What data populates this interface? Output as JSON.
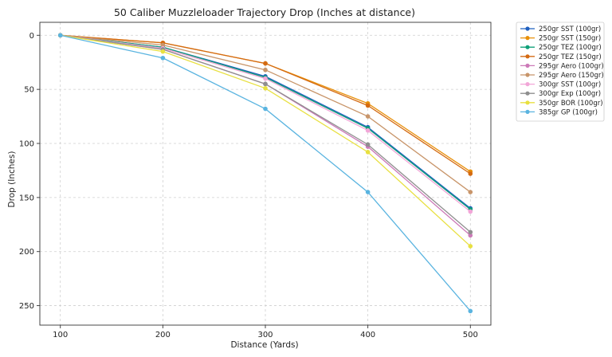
{
  "chart_data": {
    "type": "line",
    "title": "50 Caliber Muzzleloader Trajectory Drop (Inches at distance)",
    "xlabel": "Distance (Yards)",
    "ylabel": "Drop (Inches)",
    "x": [
      100,
      200,
      300,
      400,
      500
    ],
    "xlim": [
      80,
      520
    ],
    "ylim": [
      268,
      -12
    ],
    "y_inverted": true,
    "x_ticks": [
      100,
      200,
      300,
      400,
      500
    ],
    "y_ticks": [
      0,
      50,
      100,
      150,
      200,
      250
    ],
    "grid": true,
    "legend_position": "outside-top-right",
    "series": [
      {
        "name": "250gr SST (100gr)",
        "color": "#1f5fbf",
        "values": [
          0,
          11,
          38,
          85,
          160
        ]
      },
      {
        "name": "250gr SST (150gr)",
        "color": "#e8900a",
        "values": [
          0,
          7,
          26,
          63,
          126
        ]
      },
      {
        "name": "250gr TEZ (100gr)",
        "color": "#10a078",
        "values": [
          0,
          11,
          39,
          86,
          161
        ]
      },
      {
        "name": "250gr TEZ (150gr)",
        "color": "#d46a12",
        "values": [
          0,
          7,
          26,
          65,
          128
        ]
      },
      {
        "name": "295gr Aero (100gr)",
        "color": "#cc7ab8",
        "values": [
          0,
          13,
          45,
          103,
          185
        ]
      },
      {
        "name": "295gr Aero (150gr)",
        "color": "#c8956a",
        "values": [
          0,
          9,
          32,
          75,
          145
        ]
      },
      {
        "name": "300gr SST (100gr)",
        "color": "#f2a6d8",
        "values": [
          0,
          12,
          40,
          88,
          163
        ]
      },
      {
        "name": "300gr Exp (100gr)",
        "color": "#8f8f8f",
        "values": [
          0,
          13,
          45,
          101,
          182
        ]
      },
      {
        "name": "350gr BOR (100gr)",
        "color": "#e8e040",
        "values": [
          0,
          15,
          49,
          108,
          195
        ]
      },
      {
        "name": "385gr GP (100gr)",
        "color": "#5ab4e0",
        "values": [
          0,
          21,
          68,
          145,
          255
        ]
      }
    ]
  }
}
